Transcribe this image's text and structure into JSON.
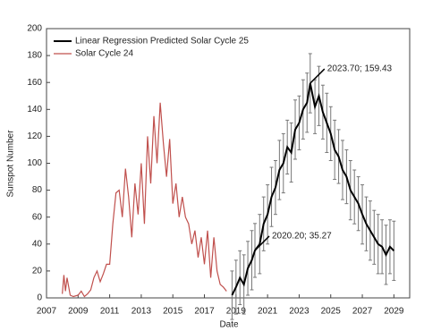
{
  "chart_data": {
    "type": "line",
    "x_label": "Date",
    "y_label": "Sunspot Number",
    "xlim": [
      2007,
      2030
    ],
    "xticks": [
      2007,
      2009,
      2011,
      2013,
      2015,
      2017,
      2019,
      2021,
      2023,
      2025,
      2027,
      2029
    ],
    "ylim": [
      0,
      200
    ],
    "yticks": [
      0,
      20,
      40,
      60,
      80,
      100,
      120,
      140,
      160,
      180,
      200
    ],
    "grid": false,
    "legend": "upper left",
    "series": [
      {
        "name": "Linear Regression Predicted Solar Cycle 25",
        "color": "#000000",
        "x": [
          2018.75,
          2019.0,
          2019.25,
          2019.5,
          2019.75,
          2020.0,
          2020.2,
          2020.5,
          2020.75,
          2021.0,
          2021.25,
          2021.5,
          2021.75,
          2022.0,
          2022.25,
          2022.5,
          2022.75,
          2023.0,
          2023.25,
          2023.5,
          2023.7,
          2024.0,
          2024.25,
          2024.5,
          2024.75,
          2025.0,
          2025.25,
          2025.5,
          2025.75,
          2026.0,
          2026.25,
          2026.5,
          2026.75,
          2027.0,
          2027.25,
          2027.5,
          2027.75,
          2028.0,
          2028.25,
          2028.5,
          2028.75,
          2029.0
        ],
        "values": [
          2,
          8,
          15,
          10,
          22,
          28,
          35.27,
          40,
          55,
          62,
          75,
          82,
          95,
          100,
          112,
          108,
          125,
          130,
          140,
          145,
          159.43,
          142,
          150,
          138,
          130,
          122,
          110,
          105,
          95,
          90,
          80,
          75,
          70,
          62,
          55,
          50,
          45,
          40,
          38,
          32,
          38,
          35
        ],
        "errors": [
          18,
          20,
          20,
          22,
          20,
          22,
          20,
          22,
          20,
          22,
          22,
          20,
          22,
          22,
          20,
          22,
          22,
          20,
          22,
          22,
          22,
          20,
          22,
          20,
          22,
          20,
          22,
          20,
          22,
          20,
          22,
          20,
          20,
          22,
          20,
          22,
          20,
          22,
          20,
          22,
          20,
          22
        ]
      },
      {
        "name": "Solar Cycle 24",
        "color": "#c0504d",
        "x": [
          2008.0,
          2008.1,
          2008.2,
          2008.3,
          2008.5,
          2008.7,
          2009.0,
          2009.2,
          2009.4,
          2009.6,
          2009.8,
          2010.0,
          2010.2,
          2010.4,
          2010.6,
          2010.8,
          2011.0,
          2011.2,
          2011.4,
          2011.6,
          2011.8,
          2012.0,
          2012.2,
          2012.4,
          2012.6,
          2012.8,
          2013.0,
          2013.2,
          2013.4,
          2013.6,
          2013.8,
          2014.0,
          2014.2,
          2014.4,
          2014.6,
          2014.8,
          2015.0,
          2015.2,
          2015.4,
          2015.6,
          2015.8,
          2016.0,
          2016.2,
          2016.4,
          2016.6,
          2016.8,
          2017.0,
          2017.2,
          2017.4,
          2017.6,
          2017.8,
          2018.0,
          2018.2,
          2018.4
        ],
        "values": [
          3,
          17,
          5,
          15,
          2,
          1,
          2,
          5,
          1,
          3,
          6,
          15,
          20,
          12,
          18,
          25,
          25,
          55,
          78,
          80,
          60,
          96,
          75,
          45,
          85,
          62,
          100,
          55,
          120,
          85,
          135,
          100,
          145,
          115,
          90,
          118,
          70,
          85,
          60,
          75,
          60,
          55,
          40,
          50,
          30,
          45,
          25,
          50,
          15,
          45,
          20,
          10,
          8,
          5
        ]
      }
    ],
    "annotations": [
      {
        "text": "2023.70; 159.43",
        "x": 2023.7,
        "y": 159.43
      },
      {
        "text": "2020.20; 35.27",
        "x": 2020.2,
        "y": 35.27
      }
    ]
  }
}
